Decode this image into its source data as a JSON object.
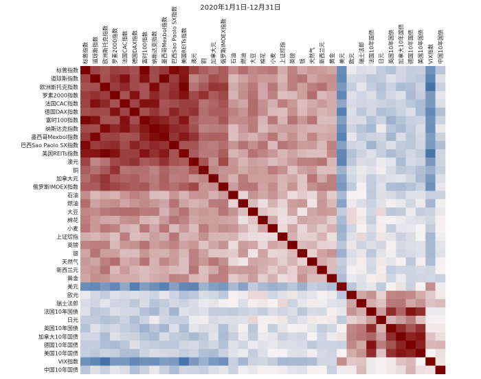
{
  "chart_data": {
    "type": "heatmap",
    "title": "2020年1月1日-12月31日",
    "labels": [
      "标普指数",
      "道琼斯指数",
      "欧洲斯托克指数",
      "罗素2000指数",
      "法国CAC指数",
      "德国DAX指数",
      "富时100指数",
      "纳斯达克指数",
      "墨西哥Mexbol指数",
      "巴西Sao Paolo SX指数",
      "美国REITs指数",
      "澳元",
      "铜",
      "加拿大元",
      "俄罗斯IMOEX指数",
      "石油",
      "燃油",
      "大豆",
      "棉花",
      "小麦",
      "上证综指",
      "英镑",
      "银",
      "天然气",
      "新西兰元",
      "黄金",
      "美元",
      "欧元",
      "瑞士法郎",
      "法国10年国债",
      "日元",
      "英国10年国债",
      "加拿大10年国债",
      "德国10年国债",
      "美国10年国债",
      "VIX指数",
      "中国10年国债"
    ],
    "colormap": {
      "min": -1,
      "mid": 0,
      "max": 1,
      "low_color": "#3b6ba5",
      "mid_color": "#f7f2f2",
      "high_color": "#7a0000"
    },
    "groups": {
      "equities": [
        0,
        1,
        2,
        3,
        4,
        5,
        6,
        7,
        8,
        9,
        10
      ],
      "risk_fx": [
        11,
        12,
        13,
        14
      ],
      "commodities": [
        15,
        16,
        17,
        18,
        19,
        20,
        21,
        22,
        23,
        24,
        25
      ],
      "usd": [
        26
      ],
      "fx_safe": [
        27,
        28,
        30
      ],
      "bonds": [
        29,
        31,
        32,
        33,
        34
      ],
      "vix": [
        35
      ],
      "cn_bond": [
        36
      ]
    },
    "group_correlations": {
      "equities|equities": 0.82,
      "equities|risk_fx": 0.62,
      "equities|commodities": 0.38,
      "equities|usd": -0.7,
      "equities|fx_safe": -0.22,
      "equities|bonds": -0.3,
      "equities|vix": -0.78,
      "equities|cn_bond": -0.25,
      "risk_fx|risk_fx": 0.55,
      "risk_fx|commodities": 0.35,
      "risk_fx|usd": -0.65,
      "risk_fx|fx_safe": -0.15,
      "risk_fx|bonds": -0.25,
      "risk_fx|vix": -0.6,
      "risk_fx|cn_bond": -0.2,
      "commodities|commodities": 0.22,
      "commodities|usd": -0.45,
      "commodities|fx_safe": -0.05,
      "commodities|bonds": -0.15,
      "commodities|vix": -0.35,
      "commodities|cn_bond": -0.1,
      "usd|usd": 1,
      "usd|fx_safe": -0.2,
      "usd|bonds": -0.1,
      "usd|vix": 0.5,
      "usd|cn_bond": 0.05,
      "fx_safe|fx_safe": 0.3,
      "fx_safe|bonds": 0.35,
      "fx_safe|vix": 0.15,
      "fx_safe|cn_bond": 0.1,
      "bonds|bonds": 0.75,
      "bonds|vix": 0.1,
      "bonds|cn_bond": 0.1,
      "vix|vix": 1,
      "vix|cn_bond": 0.15,
      "cn_bond|cn_bond": 1
    }
  }
}
